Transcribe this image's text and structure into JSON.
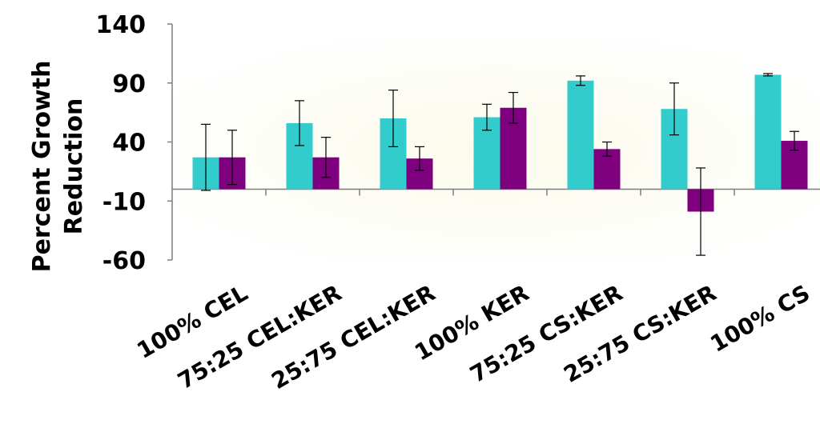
{
  "chart_data": {
    "type": "bar",
    "title": "",
    "xlabel": "",
    "ylabel": [
      "Percent Growth",
      "Reduction"
    ],
    "ylim": [
      -60,
      140
    ],
    "yticks": [
      140,
      90,
      40,
      -10,
      -60
    ],
    "categories": [
      "100% CEL",
      "75:25 CEL:KER",
      "25:75 CEL:KER",
      "100% KER",
      "75:25 CS:KER",
      "25:75 CS:KER",
      "100% CS"
    ],
    "series": [
      {
        "color": "#33CCCC",
        "values": [
          27,
          56,
          60,
          61,
          92,
          68,
          97
        ],
        "errors": [
          28,
          19,
          24,
          11,
          4,
          22,
          1
        ]
      },
      {
        "color": "#7F007F",
        "values": [
          27,
          27,
          26,
          69,
          34,
          -19,
          41
        ],
        "errors": [
          23,
          17,
          10,
          13,
          6,
          37,
          8
        ]
      }
    ],
    "grid": false,
    "legend": "none"
  }
}
